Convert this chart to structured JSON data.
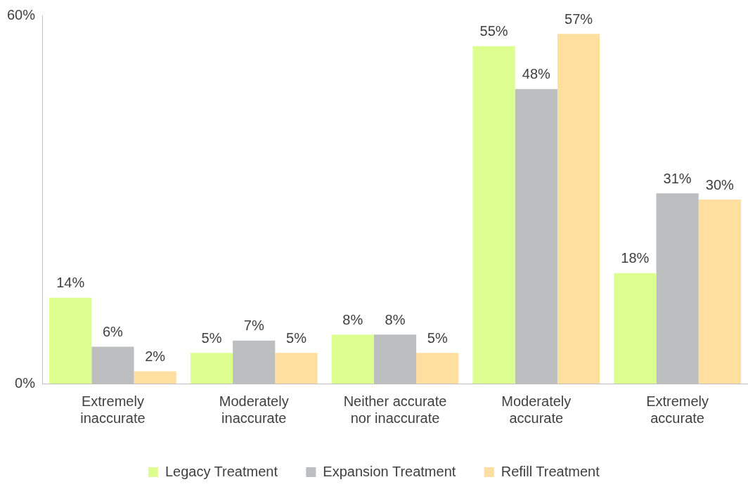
{
  "chart_data": {
    "type": "bar",
    "categories": [
      "Extremely inaccurate",
      "Moderately inaccurate",
      "Neither accurate nor inaccurate",
      "Moderately accurate",
      "Extremely accurate"
    ],
    "series": [
      {
        "name": "Legacy Treatment",
        "color": "#ddff8f",
        "values": [
          14,
          5,
          8,
          55,
          18
        ],
        "value_labels": [
          "14%",
          "5%",
          "8%",
          "55%",
          "18%"
        ]
      },
      {
        "name": "Expansion Treatment",
        "color": "#bcbec0",
        "values": [
          6,
          7,
          8,
          48,
          31
        ],
        "value_labels": [
          "6%",
          "7%",
          "8%",
          "48%",
          "31%"
        ]
      },
      {
        "name": "Refill Treatment",
        "color": "#ffdfa0",
        "values": [
          2,
          5,
          5,
          57,
          30
        ],
        "value_labels": [
          "2%",
          "5%",
          "5%",
          "57%",
          "30%"
        ]
      }
    ],
    "ylim": [
      0,
      60
    ],
    "yticks": [
      {
        "value": 0,
        "label": "0%"
      },
      {
        "value": 60,
        "label": "60%"
      }
    ],
    "grid": false,
    "legend": "bottom"
  }
}
